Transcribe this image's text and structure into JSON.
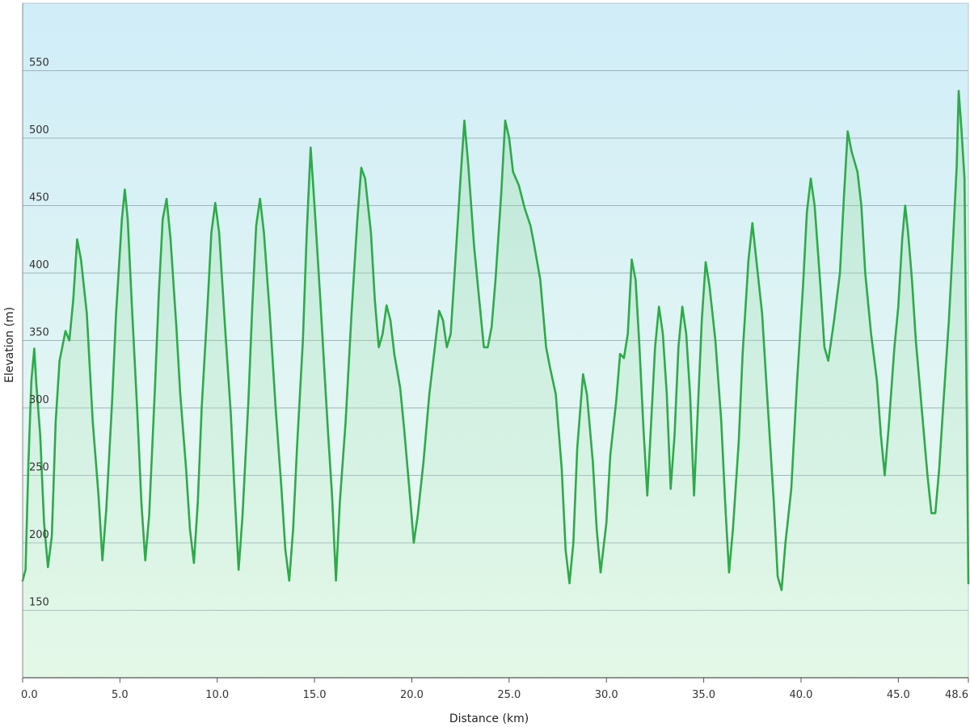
{
  "chart_data": {
    "type": "area",
    "xlabel": "Distance  (km)",
    "ylabel": "Elevation (m)",
    "xlim": [
      0,
      48.6
    ],
    "ylim": [
      100,
      600
    ],
    "y_ticks": [
      150,
      200,
      250,
      300,
      350,
      400,
      450,
      500,
      550
    ],
    "x_ticks": [
      0,
      5,
      10,
      15,
      20,
      25,
      30,
      35,
      40,
      45,
      48.6
    ],
    "x_tick_labels": [
      "0.0",
      "5.0",
      "10.0",
      "15.0",
      "20.0",
      "25.0",
      "30.0",
      "35.0",
      "40.0",
      "45.0",
      "48.6"
    ],
    "grid": "horizontal",
    "line_color": "#2eaa4a",
    "background_top_color": "#d0edf8",
    "background_bottom_color": "#eefbf0",
    "series": [
      {
        "points": [
          [
            0.0,
            172
          ],
          [
            0.15,
            180
          ],
          [
            0.3,
            260
          ],
          [
            0.45,
            320
          ],
          [
            0.6,
            344
          ],
          [
            0.7,
            318
          ],
          [
            0.9,
            280
          ],
          [
            1.1,
            215
          ],
          [
            1.3,
            182
          ],
          [
            1.5,
            205
          ],
          [
            1.7,
            290
          ],
          [
            1.9,
            335
          ],
          [
            2.2,
            357
          ],
          [
            2.4,
            350
          ],
          [
            2.6,
            380
          ],
          [
            2.8,
            425
          ],
          [
            3.0,
            410
          ],
          [
            3.3,
            370
          ],
          [
            3.6,
            290
          ],
          [
            3.9,
            235
          ],
          [
            4.1,
            187
          ],
          [
            4.3,
            225
          ],
          [
            4.6,
            305
          ],
          [
            4.8,
            370
          ],
          [
            5.1,
            440
          ],
          [
            5.25,
            462
          ],
          [
            5.4,
            440
          ],
          [
            5.6,
            380
          ],
          [
            5.9,
            295
          ],
          [
            6.1,
            230
          ],
          [
            6.3,
            187
          ],
          [
            6.5,
            220
          ],
          [
            6.8,
            315
          ],
          [
            7.0,
            385
          ],
          [
            7.2,
            440
          ],
          [
            7.4,
            455
          ],
          [
            7.6,
            425
          ],
          [
            7.9,
            360
          ],
          [
            8.1,
            310
          ],
          [
            8.4,
            255
          ],
          [
            8.6,
            210
          ],
          [
            8.8,
            185
          ],
          [
            9.0,
            230
          ],
          [
            9.2,
            300
          ],
          [
            9.5,
            375
          ],
          [
            9.7,
            430
          ],
          [
            9.9,
            452
          ],
          [
            10.1,
            430
          ],
          [
            10.4,
            360
          ],
          [
            10.7,
            295
          ],
          [
            10.9,
            235
          ],
          [
            11.1,
            180
          ],
          [
            11.3,
            220
          ],
          [
            11.6,
            305
          ],
          [
            11.8,
            375
          ],
          [
            12.0,
            435
          ],
          [
            12.2,
            455
          ],
          [
            12.4,
            430
          ],
          [
            12.7,
            370
          ],
          [
            13.0,
            300
          ],
          [
            13.3,
            240
          ],
          [
            13.5,
            195
          ],
          [
            13.7,
            172
          ],
          [
            13.9,
            210
          ],
          [
            14.1,
            270
          ],
          [
            14.4,
            350
          ],
          [
            14.6,
            430
          ],
          [
            14.8,
            493
          ],
          [
            15.0,
            450
          ],
          [
            15.3,
            380
          ],
          [
            15.5,
            330
          ],
          [
            15.7,
            280
          ],
          [
            15.9,
            235
          ],
          [
            16.1,
            172
          ],
          [
            16.3,
            230
          ],
          [
            16.6,
            290
          ],
          [
            16.9,
            370
          ],
          [
            17.2,
            440
          ],
          [
            17.4,
            478
          ],
          [
            17.6,
            470
          ],
          [
            17.9,
            430
          ],
          [
            18.1,
            380
          ],
          [
            18.3,
            345
          ],
          [
            18.5,
            355
          ],
          [
            18.7,
            376
          ],
          [
            18.9,
            365
          ],
          [
            19.1,
            340
          ],
          [
            19.4,
            315
          ],
          [
            19.6,
            285
          ],
          [
            19.9,
            235
          ],
          [
            20.1,
            200
          ],
          [
            20.3,
            220
          ],
          [
            20.6,
            260
          ],
          [
            20.9,
            310
          ],
          [
            21.1,
            335
          ],
          [
            21.4,
            372
          ],
          [
            21.6,
            365
          ],
          [
            21.8,
            345
          ],
          [
            22.0,
            355
          ],
          [
            22.2,
            400
          ],
          [
            22.5,
            470
          ],
          [
            22.7,
            513
          ],
          [
            22.9,
            480
          ],
          [
            23.2,
            420
          ],
          [
            23.5,
            375
          ],
          [
            23.7,
            345
          ],
          [
            23.9,
            345
          ],
          [
            24.1,
            360
          ],
          [
            24.3,
            395
          ],
          [
            24.6,
            460
          ],
          [
            24.8,
            513
          ],
          [
            25.0,
            500
          ],
          [
            25.2,
            475
          ],
          [
            25.5,
            465
          ],
          [
            25.8,
            448
          ],
          [
            26.1,
            435
          ],
          [
            26.3,
            420
          ],
          [
            26.6,
            395
          ],
          [
            26.9,
            345
          ],
          [
            27.1,
            330
          ],
          [
            27.4,
            310
          ],
          [
            27.7,
            255
          ],
          [
            27.9,
            195
          ],
          [
            28.1,
            170
          ],
          [
            28.3,
            200
          ],
          [
            28.5,
            270
          ],
          [
            28.8,
            325
          ],
          [
            29.0,
            310
          ],
          [
            29.3,
            260
          ],
          [
            29.5,
            210
          ],
          [
            29.7,
            178
          ],
          [
            30.0,
            215
          ],
          [
            30.2,
            265
          ],
          [
            30.5,
            305
          ],
          [
            30.7,
            340
          ],
          [
            30.9,
            337
          ],
          [
            31.1,
            355
          ],
          [
            31.3,
            410
          ],
          [
            31.5,
            395
          ],
          [
            31.7,
            345
          ],
          [
            31.9,
            285
          ],
          [
            32.1,
            235
          ],
          [
            32.3,
            290
          ],
          [
            32.5,
            345
          ],
          [
            32.7,
            375
          ],
          [
            32.9,
            355
          ],
          [
            33.1,
            310
          ],
          [
            33.3,
            240
          ],
          [
            33.5,
            280
          ],
          [
            33.7,
            345
          ],
          [
            33.9,
            375
          ],
          [
            34.1,
            355
          ],
          [
            34.3,
            310
          ],
          [
            34.5,
            235
          ],
          [
            34.7,
            300
          ],
          [
            34.9,
            365
          ],
          [
            35.1,
            408
          ],
          [
            35.3,
            390
          ],
          [
            35.6,
            350
          ],
          [
            35.9,
            290
          ],
          [
            36.1,
            230
          ],
          [
            36.3,
            178
          ],
          [
            36.5,
            210
          ],
          [
            36.8,
            275
          ],
          [
            37.0,
            340
          ],
          [
            37.3,
            410
          ],
          [
            37.5,
            437
          ],
          [
            37.7,
            410
          ],
          [
            38.0,
            370
          ],
          [
            38.3,
            300
          ],
          [
            38.6,
            230
          ],
          [
            38.8,
            175
          ],
          [
            39.0,
            165
          ],
          [
            39.2,
            200
          ],
          [
            39.5,
            240
          ],
          [
            39.8,
            320
          ],
          [
            40.1,
            390
          ],
          [
            40.3,
            445
          ],
          [
            40.5,
            470
          ],
          [
            40.7,
            450
          ],
          [
            41.0,
            390
          ],
          [
            41.2,
            345
          ],
          [
            41.4,
            335
          ],
          [
            41.7,
            365
          ],
          [
            42.0,
            400
          ],
          [
            42.2,
            455
          ],
          [
            42.4,
            505
          ],
          [
            42.6,
            490
          ],
          [
            42.9,
            475
          ],
          [
            43.1,
            450
          ],
          [
            43.3,
            400
          ],
          [
            43.6,
            355
          ],
          [
            43.9,
            320
          ],
          [
            44.1,
            280
          ],
          [
            44.3,
            250
          ],
          [
            44.5,
            285
          ],
          [
            44.8,
            345
          ],
          [
            45.0,
            375
          ],
          [
            45.2,
            425
          ],
          [
            45.35,
            450
          ],
          [
            45.5,
            430
          ],
          [
            45.7,
            395
          ],
          [
            45.9,
            350
          ],
          [
            46.2,
            300
          ],
          [
            46.5,
            250
          ],
          [
            46.7,
            222
          ],
          [
            46.9,
            222
          ],
          [
            47.1,
            255
          ],
          [
            47.3,
            300
          ],
          [
            47.6,
            365
          ],
          [
            47.8,
            420
          ],
          [
            48.0,
            480
          ],
          [
            48.1,
            535
          ],
          [
            48.25,
            505
          ],
          [
            48.4,
            470
          ],
          [
            48.6,
            170
          ]
        ]
      }
    ]
  }
}
